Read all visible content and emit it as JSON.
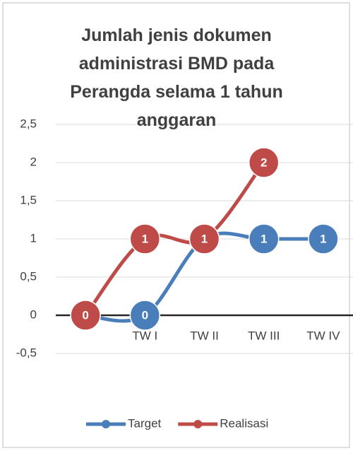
{
  "chart_data": {
    "type": "line",
    "title": "Jumlah jenis dokumen administrasi BMD pada Perangda selama 1 tahun anggaran",
    "categories": [
      null,
      "TW I",
      "TW II",
      "TW III",
      "TW IV"
    ],
    "series": [
      {
        "name": "Target",
        "color": "#4a7ebb",
        "values": [
          0,
          0,
          1,
          1,
          1
        ]
      },
      {
        "name": "Realisasi",
        "color": "#be4b48",
        "values": [
          0,
          1,
          1,
          2,
          null
        ]
      }
    ],
    "ylim": [
      -0.5,
      2.5
    ],
    "yticks": [
      {
        "value": -0.5,
        "label": "-0,5"
      },
      0,
      {
        "value": 0.5,
        "label": "0,5"
      },
      1,
      {
        "value": 1.5,
        "label": "1,5"
      },
      2,
      {
        "value": 2.5,
        "label": "2,5"
      }
    ],
    "grid": true,
    "smooth": true,
    "data_labels": true,
    "legend": "bottom"
  }
}
